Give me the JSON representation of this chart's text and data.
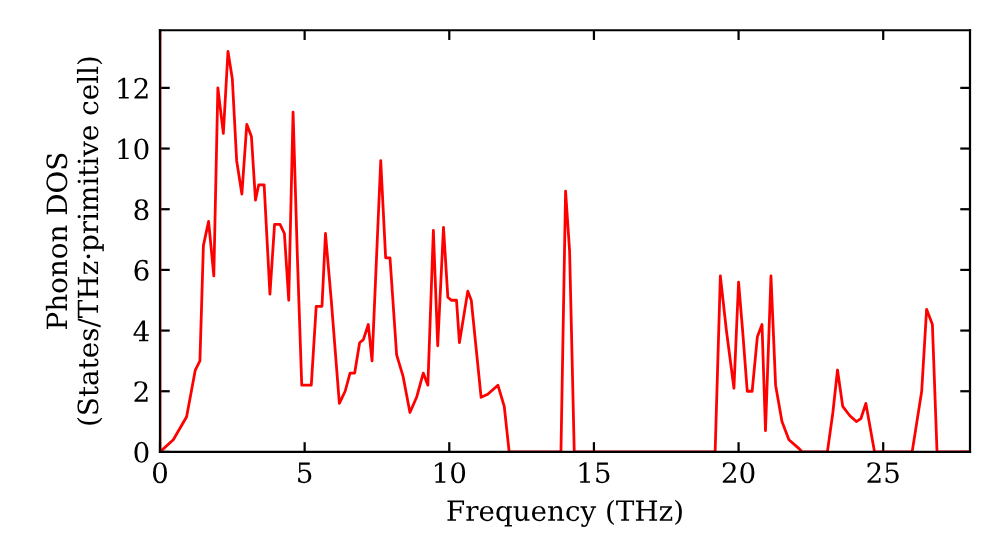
{
  "chart_data": {
    "type": "line",
    "xlabel": "Frequency (THz)",
    "ylabel": "Phonon DOS\n(States/THz·primitive cell)",
    "x": [
      0,
      0,
      0.46,
      0.92,
      1.22,
      1.38,
      1.5,
      1.68,
      1.86,
      2.0,
      2.19,
      2.35,
      2.5,
      2.65,
      2.83,
      3.0,
      3.16,
      3.3,
      3.41,
      3.6,
      3.8,
      3.96,
      4.15,
      4.3,
      4.45,
      4.6,
      4.75,
      4.9,
      5.23,
      5.4,
      5.6,
      5.72,
      5.92,
      6.2,
      6.4,
      6.57,
      6.73,
      6.9,
      7.03,
      7.2,
      7.33,
      7.63,
      7.8,
      7.95,
      8.18,
      8.4,
      8.64,
      8.87,
      9.1,
      9.26,
      9.45,
      9.6,
      9.8,
      9.95,
      10.07,
      10.25,
      10.35,
      10.64,
      10.76,
      11.1,
      11.33,
      11.68,
      11.9,
      12.07,
      13.86,
      14.02,
      14.16,
      14.32,
      19.19,
      19.37,
      19.58,
      19.84,
      20.0,
      20.14,
      20.3,
      20.47,
      20.65,
      20.81,
      20.93,
      21.12,
      21.28,
      21.5,
      21.74,
      22.1,
      22.2,
      23.07,
      23.26,
      23.42,
      23.6,
      23.84,
      24.07,
      24.23,
      24.4,
      24.53,
      24.7,
      26.0,
      26.33,
      26.5,
      26.7,
      26.86,
      28
    ],
    "series": [
      {
        "color": "#ff0000",
        "values": [
          13.9,
          0,
          0.4,
          1.16,
          2.7,
          3.0,
          6.8,
          7.6,
          5.8,
          12.0,
          10.5,
          13.2,
          12.3,
          9.6,
          8.5,
          10.8,
          10.4,
          8.3,
          8.8,
          8.8,
          5.2,
          7.5,
          7.5,
          7.2,
          5.0,
          11.2,
          6.4,
          2.2,
          2.2,
          4.8,
          4.8,
          7.2,
          5.0,
          1.6,
          2.0,
          2.6,
          2.6,
          3.6,
          3.7,
          4.2,
          3.0,
          9.6,
          6.4,
          6.4,
          3.2,
          2.5,
          1.3,
          1.8,
          2.6,
          2.2,
          7.3,
          3.5,
          7.4,
          5.1,
          5.0,
          5.0,
          3.6,
          5.3,
          5.0,
          1.8,
          1.9,
          2.2,
          1.5,
          0,
          0,
          8.6,
          6.6,
          0,
          0,
          5.8,
          4.0,
          2.1,
          5.6,
          4.0,
          2.0,
          2.0,
          3.8,
          4.2,
          0.7,
          5.8,
          2.2,
          1.0,
          0.4,
          0.1,
          0,
          0,
          1.3,
          2.7,
          1.5,
          1.2,
          1.0,
          1.1,
          1.6,
          0.9,
          0,
          0,
          2.0,
          4.7,
          4.2,
          0,
          0
        ]
      }
    ],
    "xlim": [
      0,
      28
    ],
    "ylim": [
      0,
      13.9
    ],
    "xticks": [
      0,
      5,
      10,
      15,
      20,
      25
    ],
    "yticks": [
      0,
      2,
      4,
      6,
      8,
      10,
      12
    ],
    "grid": false,
    "legend": false,
    "marker": "none",
    "line_style": "solid"
  }
}
